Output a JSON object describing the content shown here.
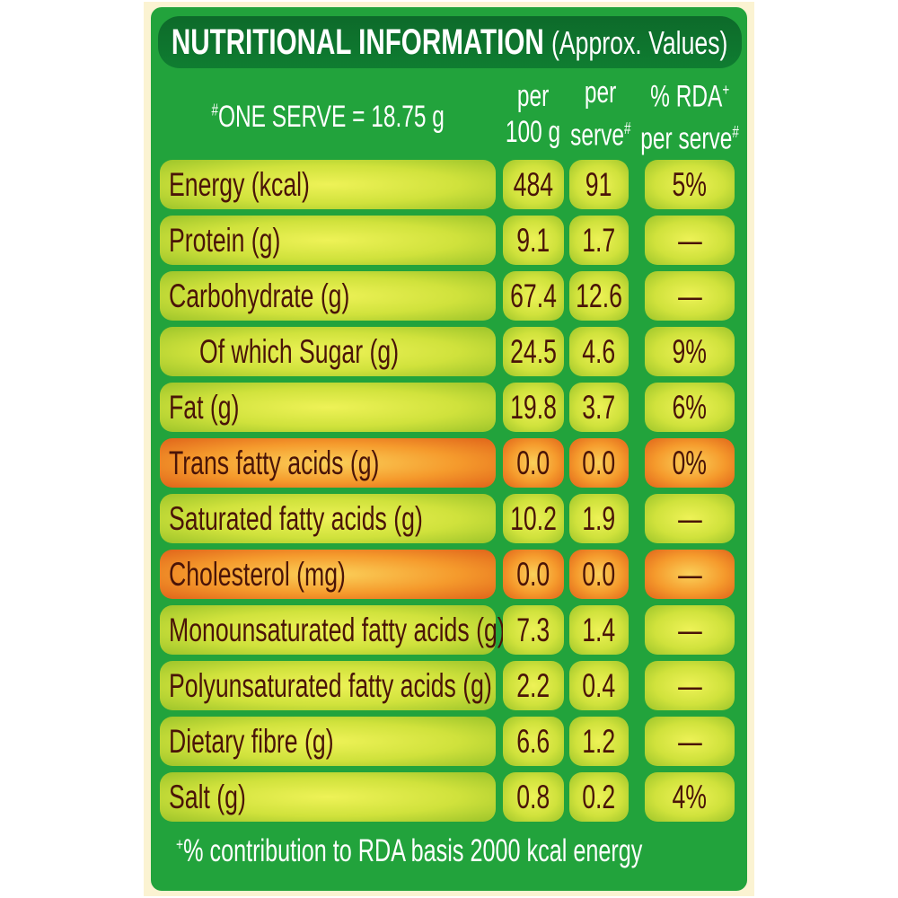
{
  "header": {
    "title": "NUTRITIONAL INFORMATION",
    "subtitle": "(Approx. Values)"
  },
  "serve_note": {
    "mark": "#",
    "text": "ONE SERVE = 18.75 g"
  },
  "columns": [
    {
      "line1": "per",
      "line2": "100 g"
    },
    {
      "line1": "per",
      "line2": "serve",
      "mark2": "#"
    },
    {
      "line1": "% RDA",
      "mark1": "+",
      "line2": "per serve",
      "mark2": "#"
    }
  ],
  "rows": [
    {
      "label": "Energy (kcal)",
      "per_100g": "484",
      "per_serve": "91",
      "rda": "5%"
    },
    {
      "label": "Protein (g)",
      "per_100g": "9.1",
      "per_serve": "1.7",
      "rda": "—"
    },
    {
      "label": "Carbohydrate (g)",
      "per_100g": "67.4",
      "per_serve": "12.6",
      "rda": "—"
    },
    {
      "label": "Of which Sugar (g)",
      "per_100g": "24.5",
      "per_serve": "4.6",
      "rda": "9%",
      "indent": true
    },
    {
      "label": "Fat (g)",
      "per_100g": "19.8",
      "per_serve": "3.7",
      "rda": "6%"
    },
    {
      "label": "Trans fatty acids (g)",
      "per_100g": "0.0",
      "per_serve": "0.0",
      "rda": "0%",
      "highlight": true
    },
    {
      "label": "Saturated fatty acids (g)",
      "per_100g": "10.2",
      "per_serve": "1.9",
      "rda": "—"
    },
    {
      "label": "Cholesterol (mg)",
      "per_100g": "0.0",
      "per_serve": "0.0",
      "rda": "—",
      "highlight": true
    },
    {
      "label": "Monounsaturated fatty acids (g)",
      "per_100g": "7.3",
      "per_serve": "1.4",
      "rda": "—"
    },
    {
      "label": "Polyunsaturated fatty acids (g)",
      "per_100g": "2.2",
      "per_serve": "0.4",
      "rda": "—"
    },
    {
      "label": "Dietary fibre (g)",
      "per_100g": "6.6",
      "per_serve": "1.2",
      "rda": "—"
    },
    {
      "label": "Salt (g)",
      "per_100g": "0.8",
      "per_serve": "0.2",
      "rda": "4%"
    }
  ],
  "footnote": {
    "mark": "+",
    "text": "% contribution to RDA basis 2000 kcal energy"
  }
}
